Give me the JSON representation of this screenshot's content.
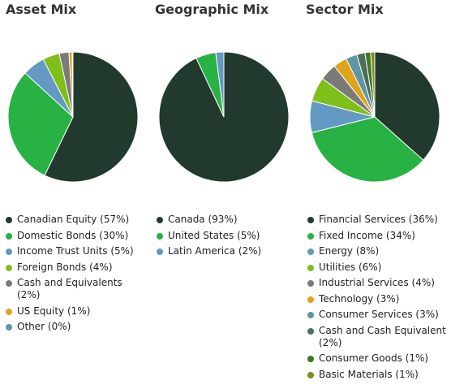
{
  "chart_data": [
    {
      "type": "pie",
      "title": "Asset Mix",
      "legend_position": "bottom",
      "slices": [
        {
          "label": "Canadian Equity (57%)",
          "value": 57.2,
          "color": "#213a2d"
        },
        {
          "label": "Domestic Bonds (30%)",
          "value": 29.6,
          "color": "#27b243"
        },
        {
          "label": "Income Trust Units (5%)",
          "value": 5.6,
          "color": "#6399c2"
        },
        {
          "label": "Foreign Bonds (4%)",
          "value": 4.2,
          "color": "#7fbf1a"
        },
        {
          "label": "Cash and Equivalents (2%)",
          "value": 2.4,
          "color": "#7a7a7a"
        },
        {
          "label": "US Equity (1%)",
          "value": 0.8,
          "color": "#e0a41c"
        },
        {
          "label": "Other (0%)",
          "value": 0.2,
          "color": "#5f96a6"
        }
      ]
    },
    {
      "type": "pie",
      "title": "Geographic Mix",
      "legend_position": "bottom",
      "slices": [
        {
          "label": "Canada (93%)",
          "value": 93.0,
          "color": "#213a2d"
        },
        {
          "label": "United States (5%)",
          "value": 5.0,
          "color": "#27b243"
        },
        {
          "label": "Latin America (2%)",
          "value": 2.0,
          "color": "#6399c2"
        }
      ]
    },
    {
      "type": "pie",
      "title": "Sector Mix",
      "legend_position": "bottom",
      "slices": [
        {
          "label": "Financial Services (36%)",
          "value": 36.2,
          "color": "#213a2d"
        },
        {
          "label": "Fixed Income (34%)",
          "value": 34.2,
          "color": "#27b243"
        },
        {
          "label": "Energy (8%)",
          "value": 7.8,
          "color": "#6399c2"
        },
        {
          "label": "Utilities (6%)",
          "value": 6.0,
          "color": "#7fbf1a"
        },
        {
          "label": "Industrial Services (4%)",
          "value": 4.2,
          "color": "#7a7a7a"
        },
        {
          "label": "Technology (3%)",
          "value": 3.4,
          "color": "#e0a41c"
        },
        {
          "label": "Consumer Services (3%)",
          "value": 2.8,
          "color": "#5f96a6"
        },
        {
          "label": "Cash and Cash Equivalent (2%)",
          "value": 2.0,
          "color": "#4e6e5c"
        },
        {
          "label": "Consumer Goods (1%)",
          "value": 1.4,
          "color": "#3a7a22"
        },
        {
          "label": "Basic Materials (1%)",
          "value": 1.0,
          "color": "#7e8f1c"
        }
      ]
    }
  ]
}
